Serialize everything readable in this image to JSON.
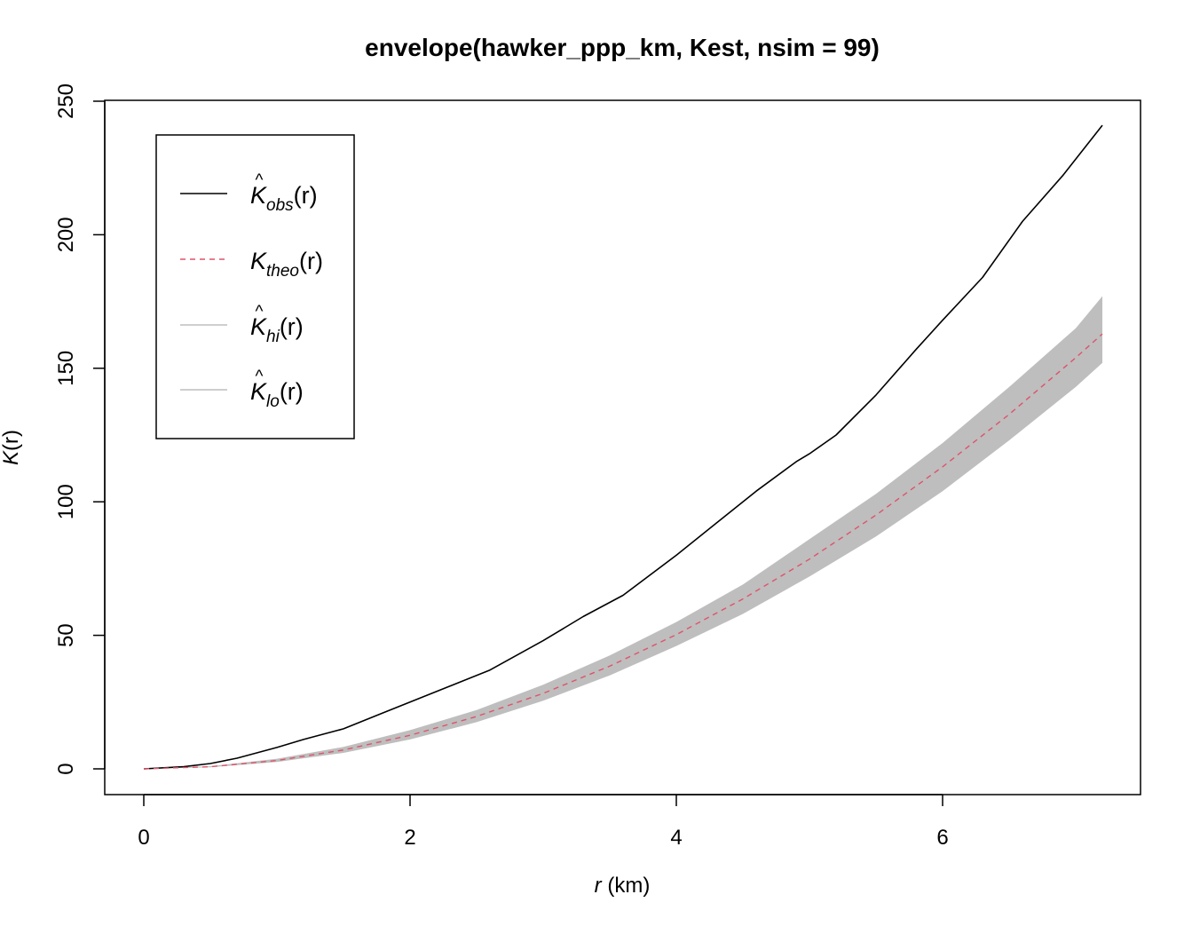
{
  "chart_data": {
    "type": "line",
    "title": "envelope(hawker_ppp_km, Kest, nsim = 99)",
    "xlabel": {
      "symbol": "r",
      "unit": " (km)"
    },
    "ylabel": {
      "symbol": "K",
      "arg": "(r)"
    },
    "xlim": [
      0,
      7.2
    ],
    "ylim": [
      0,
      250
    ],
    "xticks": [
      0,
      2,
      4,
      6
    ],
    "yticks": [
      0,
      50,
      100,
      150,
      200,
      250
    ],
    "legend": {
      "position": "top-left",
      "entries": [
        {
          "base": "K",
          "hat": "^",
          "sub": "obs",
          "arg": "(r)",
          "style": "solid",
          "color": "#000000"
        },
        {
          "base": "K",
          "hat": "",
          "sub": "theo",
          "arg": "(r)",
          "style": "dashed",
          "color": "#DF536B"
        },
        {
          "base": "K",
          "hat": "^",
          "sub": "hi",
          "arg": "(r)",
          "style": "solid",
          "color": "#BEBEBE"
        },
        {
          "base": "K",
          "hat": "^",
          "sub": "lo",
          "arg": "(r)",
          "style": "solid",
          "color": "#BEBEBE"
        }
      ]
    },
    "series": [
      {
        "name": "obs",
        "color": "#000000",
        "x": [
          0,
          0.3,
          0.5,
          0.7,
          1.0,
          1.2,
          1.5,
          1.8,
          2.0,
          2.3,
          2.6,
          3.0,
          3.3,
          3.6,
          4.0,
          4.3,
          4.6,
          4.9,
          5.0,
          5.2,
          5.5,
          5.8,
          6.0,
          6.3,
          6.6,
          6.9,
          7.2
        ],
        "y": [
          0,
          0.8,
          2,
          4,
          8,
          11,
          15,
          21,
          25,
          31,
          37,
          48,
          57,
          65,
          80,
          92,
          104,
          115,
          118,
          125,
          140,
          157,
          168,
          184,
          205,
          222,
          241
        ]
      },
      {
        "name": "theo",
        "color": "#DF536B",
        "x": [
          0,
          0.5,
          1,
          1.5,
          2,
          2.5,
          3,
          3.5,
          4,
          4.5,
          5,
          5.5,
          6,
          6.5,
          7,
          7.2
        ],
        "y": [
          0,
          0.79,
          3.14,
          7.07,
          12.57,
          19.63,
          28.27,
          38.48,
          50.27,
          63.62,
          78.54,
          95.03,
          113.1,
          132.73,
          153.94,
          162.86
        ]
      }
    ],
    "envelope": {
      "name": "hi/lo",
      "color": "#BEBEBE",
      "x": [
        0,
        0.5,
        1,
        1.5,
        2,
        2.5,
        3,
        3.5,
        4,
        4.5,
        5,
        5.5,
        6,
        6.5,
        7,
        7.2
      ],
      "hi": [
        0,
        1.0,
        3.8,
        8.2,
        14.5,
        22.0,
        31.5,
        42.5,
        55.0,
        69.0,
        86.0,
        103.0,
        122.0,
        143.0,
        165.0,
        177.0
      ],
      "lo": [
        0,
        0.6,
        2.6,
        6.0,
        11.0,
        17.5,
        25.5,
        35.0,
        46.0,
        58.0,
        72.0,
        87.0,
        104.0,
        123.0,
        143.0,
        152.0
      ]
    }
  }
}
